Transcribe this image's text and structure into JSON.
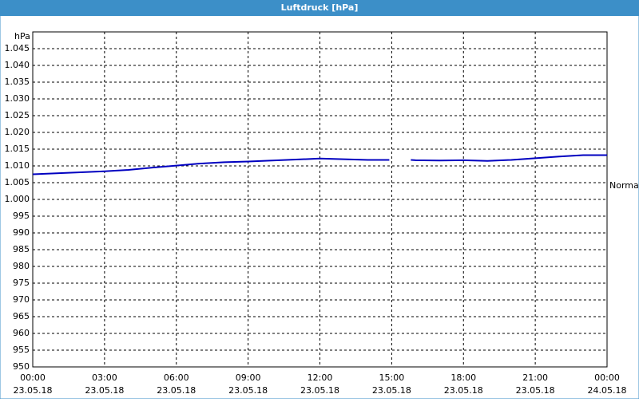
{
  "chart_data": {
    "type": "line",
    "title": "Luftdruck [hPa]",
    "y_unit": "hPa",
    "x": [
      0,
      1,
      2,
      3,
      4,
      5,
      6,
      7,
      8,
      9,
      10,
      11,
      12,
      13,
      14,
      14.9,
      15.4,
      15.8,
      16,
      17,
      18,
      19,
      20,
      21,
      22,
      23,
      24
    ],
    "values": [
      1007.5,
      1007.8,
      1008.1,
      1008.4,
      1008.8,
      1009.5,
      1010.1,
      1010.7,
      1011.1,
      1011.3,
      1011.6,
      1011.9,
      1012.2,
      1012.0,
      1011.8,
      1011.8,
      null,
      1011.8,
      1011.7,
      1011.6,
      1011.7,
      1011.5,
      1011.8,
      1012.3,
      1012.8,
      1013.2,
      1013.2
    ],
    "color": "#0000c0",
    "xlim": [
      0,
      24
    ],
    "xticks": [
      {
        "value": 0,
        "label": "00:00",
        "date": "23.05.18"
      },
      {
        "value": 3,
        "label": "03:00",
        "date": "23.05.18"
      },
      {
        "value": 6,
        "label": "06:00",
        "date": "23.05.18"
      },
      {
        "value": 9,
        "label": "09:00",
        "date": "23.05.18"
      },
      {
        "value": 12,
        "label": "12:00",
        "date": "23.05.18"
      },
      {
        "value": 15,
        "label": "15:00",
        "date": "23.05.18"
      },
      {
        "value": 18,
        "label": "18:00",
        "date": "23.05.18"
      },
      {
        "value": 21,
        "label": "21:00",
        "date": "23.05.18"
      },
      {
        "value": 24,
        "label": "00:00",
        "date": "24.05.18"
      }
    ],
    "ylim": [
      950,
      1050
    ],
    "yticks": [
      950,
      955,
      960,
      965,
      970,
      975,
      980,
      985,
      990,
      995,
      {
        "value": 1000,
        "label": "1.000"
      },
      {
        "value": 1005,
        "label": "1.005"
      },
      {
        "value": 1010,
        "label": "1.010"
      },
      {
        "value": 1015,
        "label": "1.015"
      },
      {
        "value": 1020,
        "label": "1.020"
      },
      {
        "value": 1025,
        "label": "1.025"
      },
      {
        "value": 1030,
        "label": "1.030"
      },
      {
        "value": 1035,
        "label": "1.035"
      },
      {
        "value": 1040,
        "label": "1.040"
      },
      {
        "value": 1045,
        "label": "1.045"
      }
    ],
    "annotation": {
      "text": "Normal",
      "value": 1004
    },
    "grid": true
  }
}
